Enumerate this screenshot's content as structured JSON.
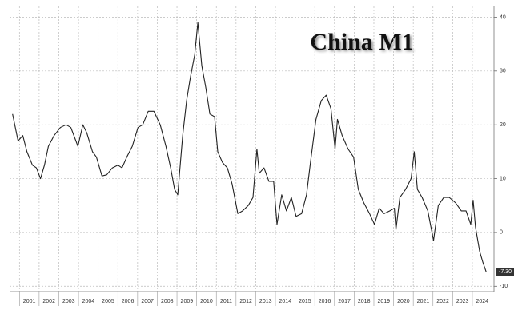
{
  "chart_data": {
    "type": "line",
    "title": "China M1",
    "xlim": [
      2000.5,
      2025.1
    ],
    "ylim": [
      -11,
      42
    ],
    "xticks": [
      2001,
      2002,
      2003,
      2004,
      2005,
      2006,
      2007,
      2008,
      2009,
      2010,
      2011,
      2012,
      2013,
      2014,
      2015,
      2016,
      2017,
      2018,
      2019,
      2020,
      2021,
      2022,
      2023,
      2024
    ],
    "yticks": [
      40,
      30,
      20,
      10,
      0,
      -10
    ],
    "grid": true,
    "x": [
      2000.65,
      2000.93,
      2001.17,
      2001.38,
      2001.66,
      2001.86,
      2002.07,
      2002.27,
      2002.47,
      2002.76,
      2003.08,
      2003.37,
      2003.61,
      2003.97,
      2004.22,
      2004.42,
      2004.71,
      2004.91,
      2005.19,
      2005.43,
      2005.72,
      2006.0,
      2006.21,
      2006.45,
      2006.73,
      2007.02,
      2007.26,
      2007.54,
      2007.83,
      2008.15,
      2008.44,
      2008.68,
      2008.88,
      2009.04,
      2009.29,
      2009.49,
      2009.69,
      2009.9,
      2010.06,
      2010.26,
      2010.46,
      2010.67,
      2010.91,
      2011.07,
      2011.31,
      2011.56,
      2011.8,
      2012.09,
      2012.33,
      2012.62,
      2012.86,
      2013.06,
      2013.18,
      2013.42,
      2013.67,
      2013.91,
      2014.08,
      2014.32,
      2014.56,
      2014.81,
      2015.05,
      2015.33,
      2015.58,
      2015.78,
      2016.06,
      2016.33,
      2016.58,
      2016.82,
      2017.03,
      2017.15,
      2017.39,
      2017.69,
      2017.97,
      2018.21,
      2018.49,
      2018.78,
      2019.03,
      2019.27,
      2019.52,
      2019.8,
      2020.04,
      2020.12,
      2020.32,
      2020.61,
      2020.89,
      2021.05,
      2021.21,
      2021.45,
      2021.74,
      2022.03,
      2022.27,
      2022.55,
      2022.83,
      2023.15,
      2023.44,
      2023.68,
      2023.92,
      2024.04,
      2024.16,
      2024.37,
      2024.53,
      2024.7
    ],
    "series": [
      {
        "color": "#222222",
        "values": [
          22,
          17,
          18,
          15,
          12.5,
          12,
          10,
          12.5,
          16,
          18,
          19.5,
          20,
          19.5,
          16,
          20,
          18.5,
          15,
          14,
          10.5,
          10.7,
          12,
          12.5,
          12,
          14,
          16,
          19.5,
          20,
          22.5,
          22.5,
          20,
          16,
          12,
          8,
          7,
          18,
          24.5,
          29,
          33,
          39,
          31,
          27,
          22,
          21.5,
          15,
          13,
          12,
          9,
          3.5,
          4,
          5,
          6.5,
          15.5,
          11,
          12,
          9.5,
          9.5,
          1.5,
          7,
          4,
          6.5,
          3,
          3.5,
          7,
          13,
          21,
          24.5,
          25.5,
          23,
          15.5,
          21,
          18,
          15.5,
          14,
          8,
          5.5,
          3.5,
          1.5,
          4.5,
          3.5,
          4,
          4.5,
          0.5,
          6.5,
          8,
          10,
          15,
          8,
          6.5,
          4,
          -1.5,
          5,
          6.5,
          6.5,
          5.5,
          4,
          4,
          1.5,
          6,
          1,
          -3.5,
          -5.5,
          -7.3
        ],
        "value_labels": [
          null,
          null,
          null,
          null,
          null,
          null,
          null,
          null,
          null,
          null,
          null,
          null,
          null,
          null,
          null,
          null,
          null,
          null,
          null,
          null,
          null,
          null,
          null,
          null,
          null,
          null,
          null,
          null,
          null,
          null,
          null,
          null,
          null,
          null,
          null,
          null,
          null,
          null,
          null,
          null,
          null,
          null,
          null,
          null,
          null,
          null,
          null,
          null,
          null,
          null,
          null,
          null,
          null,
          null,
          null,
          null,
          null,
          null,
          null,
          null,
          null,
          null,
          null,
          null,
          null,
          null,
          null,
          null,
          null,
          null,
          null,
          null,
          null,
          null,
          null,
          null,
          null,
          null,
          null,
          null,
          null,
          null,
          null,
          null,
          null,
          null,
          null,
          null,
          null,
          null,
          null,
          null,
          null,
          null,
          null,
          null,
          null,
          null,
          null,
          null,
          null,
          "-7.30"
        ]
      }
    ]
  }
}
